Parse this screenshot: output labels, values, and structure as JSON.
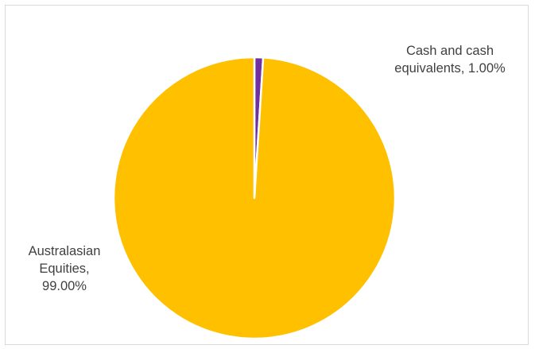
{
  "chart_data": {
    "type": "pie",
    "title": "",
    "slices": [
      {
        "name": "Cash and cash equivalents",
        "value": 1.0,
        "color": "#7030A0",
        "label": "Cash and cash\nequivalents, 1.00%"
      },
      {
        "name": "Australasian Equities",
        "value": 99.0,
        "color": "#FFC000",
        "label": "Australasian\nEquities,\n99.00%"
      }
    ],
    "slice_border_color": "#ffffff",
    "start_angle_deg": 0,
    "direction": "clockwise",
    "legend": "none",
    "data_labels": "outside"
  }
}
